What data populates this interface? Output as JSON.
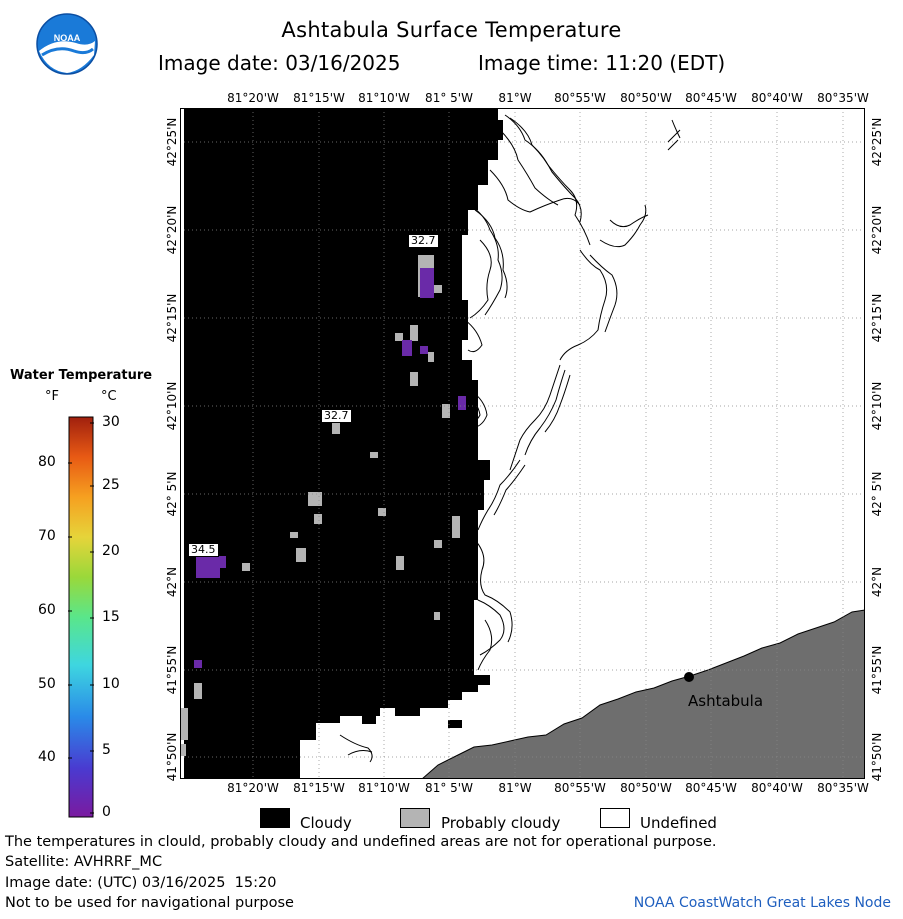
{
  "header": {
    "title": "Ashtabula Surface Temperature",
    "image_date": "Image date: 03/16/2025",
    "image_time": "Image time: 11:20 (EDT)"
  },
  "map": {
    "lon_labels": [
      "81°20'W",
      "81°15'W",
      "81°10'W",
      "81° 5'W",
      "81°W",
      "80°55'W",
      "80°50'W",
      "80°45'W",
      "80°40'W",
      "80°35'W"
    ],
    "lat_labels": [
      "42°25'N",
      "42°20'N",
      "42°15'N",
      "42°10'N",
      "42° 5'N",
      "42°N",
      "41°55'N",
      "41°50'N"
    ],
    "place_label": "Ashtabula",
    "values": [
      "32.7",
      "32.7",
      "34.5"
    ],
    "colors": {
      "cloudy": "#000000",
      "probably_cloudy": "#b4b4b4",
      "land": "#6e6e6e",
      "water_cold": "#6a2aa8"
    }
  },
  "legend": {
    "title": "Water Temperature",
    "unit_f": "°F",
    "unit_c": "°C",
    "f_ticks": [
      "80",
      "70",
      "60",
      "50",
      "40"
    ],
    "c_ticks": [
      "30",
      "25",
      "20",
      "15",
      "10",
      "5",
      "0"
    ]
  },
  "key": {
    "cloudy": "Cloudy",
    "probably_cloudy": "Probably cloudy",
    "undefined": "Undefined"
  },
  "footer": {
    "line1": "The temperatures in clould, probably cloudy and undefined areas are not for operational purpose.",
    "line2": "Satellite: AVHRRF_MC",
    "line3": "Image date: (UTC) 03/16/2025  15:20",
    "line4": "Not to be used for navigational purpose",
    "credit": "NOAA CoastWatch Great Lakes Node"
  }
}
